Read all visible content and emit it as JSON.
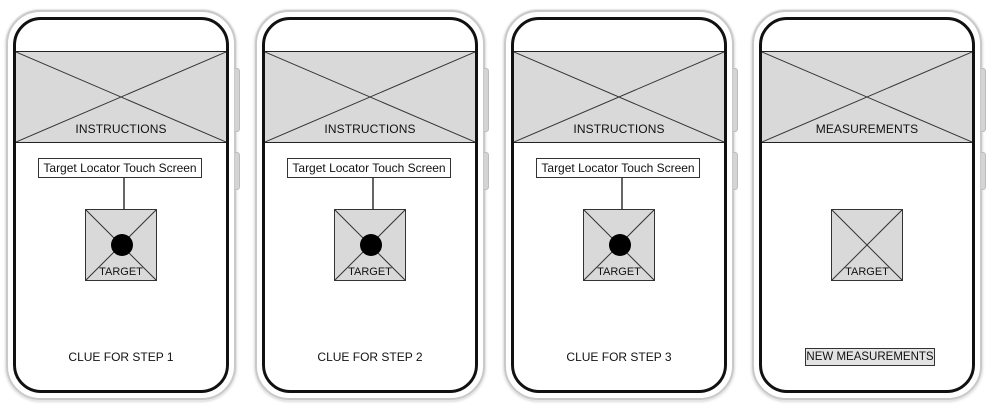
{
  "phones": [
    {
      "banner": "INSTRUCTIONS",
      "locator": "Target Locator Touch Screen",
      "target": "TARGET",
      "footer": "CLUE FOR STEP 1"
    },
    {
      "banner": "INSTRUCTIONS",
      "locator": "Target Locator Touch Screen",
      "target": "TARGET",
      "footer": "CLUE FOR STEP 2"
    },
    {
      "banner": "INSTRUCTIONS",
      "locator": "Target Locator Touch Screen",
      "target": "TARGET",
      "footer": "CLUE FOR STEP 3"
    },
    {
      "banner": "MEASUREMENTS",
      "target": "TARGET",
      "button": "NEW MEASUREMENTS"
    }
  ],
  "colors": {
    "placeholder_fill": "#d9d9d9",
    "frame": "#111111",
    "button_fill": "#e3e3e3"
  }
}
